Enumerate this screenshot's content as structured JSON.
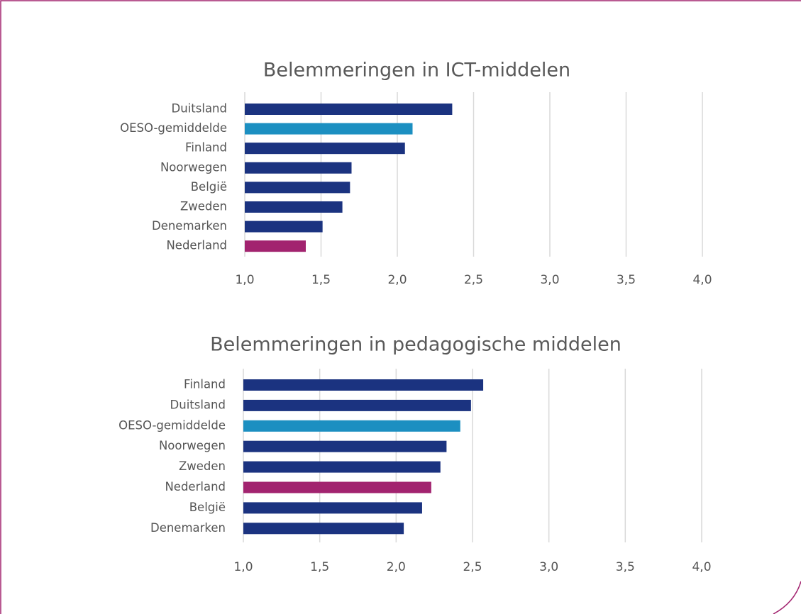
{
  "chart_data": [
    {
      "type": "bar",
      "orientation": "horizontal",
      "title": "Belemmeringen in ICT-middelen",
      "categories": [
        "Duitsland",
        "OESO-gemiddelde",
        "Finland",
        "Noorwegen",
        "België",
        "Zweden",
        "Denemarken",
        "Nederland"
      ],
      "values": [
        2.36,
        2.1,
        2.05,
        1.7,
        1.69,
        1.64,
        1.51,
        1.4
      ],
      "colors": [
        "#1b3380",
        "#1c8fc1",
        "#1b3380",
        "#1b3380",
        "#1b3380",
        "#1b3380",
        "#1b3380",
        "#a2236f"
      ],
      "xlim": [
        1,
        4
      ],
      "xticks": [
        {
          "value": 1,
          "label": "1,0"
        },
        {
          "value": 1.5,
          "label": "1,5"
        },
        {
          "value": 2,
          "label": "2,0"
        },
        {
          "value": 2.5,
          "label": "2,5"
        },
        {
          "value": 3,
          "label": "3,0"
        },
        {
          "value": 3.5,
          "label": "3,5"
        },
        {
          "value": 4,
          "label": "4,0"
        }
      ],
      "grid": true
    },
    {
      "type": "bar",
      "orientation": "horizontal",
      "title": "Belemmeringen in pedagogische middelen",
      "categories": [
        "Finland",
        "Duitsland",
        "OESO-gemiddelde",
        "Noorwegen",
        "Zweden",
        "Nederland",
        "België",
        "Denemarken"
      ],
      "values": [
        2.57,
        2.49,
        2.42,
        2.33,
        2.29,
        2.23,
        2.17,
        2.05
      ],
      "colors": [
        "#1b3380",
        "#1b3380",
        "#1c8fc1",
        "#1b3380",
        "#1b3380",
        "#a2236f",
        "#1b3380",
        "#1b3380"
      ],
      "xlim": [
        1,
        4
      ],
      "xticks": [
        {
          "value": 1,
          "label": "1,0"
        },
        {
          "value": 1.5,
          "label": "1,5"
        },
        {
          "value": 2,
          "label": "2,0"
        },
        {
          "value": 2.5,
          "label": "2,5"
        },
        {
          "value": 3,
          "label": "3,0"
        },
        {
          "value": 3.5,
          "label": "3,5"
        },
        {
          "value": 4,
          "label": "4,0"
        }
      ],
      "grid": true
    }
  ]
}
